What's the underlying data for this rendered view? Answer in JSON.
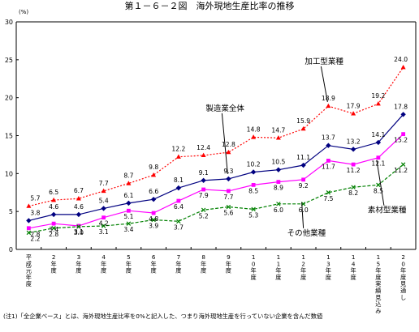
{
  "chart_data": {
    "type": "line",
    "title": "第１－６－２図　海外現地生産比率の推移",
    "ylabel": "(%)",
    "ylim": [
      0,
      30
    ],
    "yticks": [
      0,
      5,
      10,
      15,
      20,
      25,
      30
    ],
    "grid": false,
    "categories": [
      "平成元年度",
      "2年度",
      "3年度",
      "4年度",
      "5年度",
      "6年度",
      "7年度",
      "8年度",
      "9年度",
      "10年度",
      "11年度",
      "12年度",
      "13年度",
      "14年度",
      "15年度実績見込み",
      "20年度見通し"
    ],
    "series": [
      {
        "name": "加工型業種",
        "color": "#ff0000",
        "style": "dotted",
        "marker": "triangle",
        "values": [
          5.7,
          6.5,
          6.7,
          7.7,
          8.7,
          9.8,
          12.2,
          12.4,
          12.8,
          14.8,
          14.7,
          15.9,
          18.9,
          17.9,
          19.2,
          24.0
        ],
        "labels": [
          "5.7",
          "6.5",
          "6.7",
          "7.7",
          "8.7",
          "9.8",
          "12.2",
          "12.4",
          "12.8",
          "14.8",
          "14.7",
          "15.9",
          "18.9",
          "17.9",
          "19.2",
          "24.0"
        ]
      },
      {
        "name": "製造業全体",
        "color": "#000080",
        "style": "solid",
        "marker": "diamond",
        "values": [
          3.8,
          4.6,
          4.6,
          5.4,
          6.1,
          6.6,
          8.1,
          9.1,
          9.3,
          10.2,
          10.5,
          11.1,
          13.7,
          13.2,
          14.1,
          17.8
        ],
        "labels": [
          "3.8",
          "4.6",
          "4.6",
          "5.4",
          "6.1",
          "6.6",
          "8.1",
          "9.1",
          "9.3",
          "10.2",
          "10.5",
          "11.1",
          "13.7",
          "13.2",
          "14.1",
          "17.8"
        ]
      },
      {
        "name": "素材型業種",
        "color": "#ff00ff",
        "style": "solid",
        "marker": "square",
        "values": [
          2.8,
          3.4,
          3.1,
          4.2,
          5.1,
          4.8,
          6.4,
          7.9,
          7.7,
          8.5,
          8.9,
          9.2,
          11.7,
          11.2,
          12.1,
          15.2
        ],
        "labels": [
          "2.8",
          "3.4",
          "3.1",
          "4.2",
          "5.1",
          "4.8",
          "6.4",
          "7.9",
          "7.7",
          "8.5",
          "8.9",
          "9.2",
          "11.7",
          "11.2",
          "12.1",
          "15.2"
        ]
      },
      {
        "name": "その他業種",
        "color": "#008000",
        "style": "dashed",
        "marker": "x",
        "values": [
          2.2,
          2.8,
          3.0,
          3.1,
          3.4,
          3.9,
          3.7,
          5.2,
          5.6,
          5.3,
          6.0,
          6.0,
          7.5,
          8.2,
          8.5,
          11.2
        ],
        "labels": [
          "2.2",
          "2.8",
          "3.0",
          "3.1",
          "3.4",
          "3.9",
          "3.7",
          "5.2",
          "5.6",
          "5.3",
          "6.0",
          "6.0",
          "7.5",
          "8.2",
          "8.5",
          "11.2"
        ]
      }
    ],
    "annotations": [
      {
        "text": "加工型業種",
        "series": "加工型業種"
      },
      {
        "text": "製造業全体",
        "series": "製造業全体"
      },
      {
        "text": "その他業種",
        "series": "その他業種"
      },
      {
        "text": "素材型業種",
        "series": "素材型業種"
      }
    ],
    "footnote": "(注1)「全企業ベース」とは、海外現地生産比率を0%と記入した、つまり海外現地生産を行っていない企業を含んだ数値"
  }
}
